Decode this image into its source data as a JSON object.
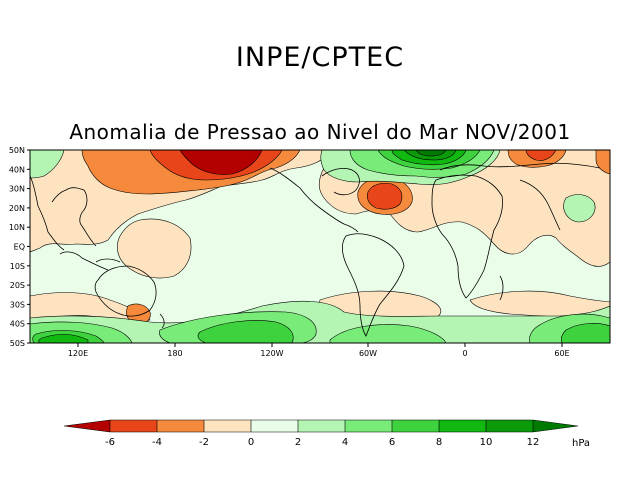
{
  "header": {
    "title": "INPE/CPTEC",
    "subtitle": "Anomalia de Pressao ao Nivel do Mar NOV/2001"
  },
  "map": {
    "lat_labels": [
      "50N",
      "40N",
      "30N",
      "20N",
      "10N",
      "EQ",
      "10S",
      "20S",
      "30S",
      "40S",
      "50S"
    ],
    "lon_labels": [
      "120E",
      "180",
      "120W",
      "60W",
      "0",
      "60E"
    ]
  },
  "colorbar": {
    "unit": "hPa",
    "ticks": [
      "-6",
      "-4",
      "-2",
      "0",
      "2",
      "4",
      "6",
      "8",
      "10",
      "12"
    ],
    "colors": [
      "#b30000",
      "#e8451a",
      "#f58a3c",
      "#fde3bf",
      "#e9fde9",
      "#b4f5b4",
      "#78eb78",
      "#3ed23e",
      "#10b810",
      "#0a9a0a",
      "#007a00"
    ]
  }
}
